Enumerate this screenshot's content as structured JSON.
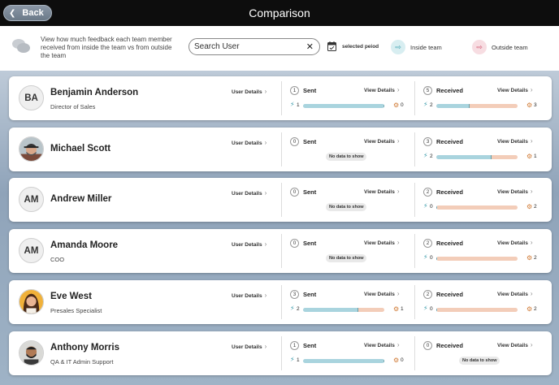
{
  "header": {
    "back_label": "Back",
    "title": "Comparison"
  },
  "toolbar": {
    "description": "View how much feedback each team member received from inside the team vs from outside the team",
    "search_placeholder": "Search User",
    "clear_symbol": "✕",
    "period_label": "selected peiod",
    "inside_label": "Inside team",
    "outside_label": "Outside team"
  },
  "labels": {
    "user_details": "User Details",
    "view_details": "View Details",
    "sent": "Sent",
    "received": "Received",
    "no_data": "No data to show"
  },
  "colors": {
    "inside": "#a9d4de",
    "outside": "#f3cdb9",
    "header_bg": "#0d0d0d"
  },
  "people": [
    {
      "name": "Benjamin Anderson",
      "role": "Director of Sales",
      "initials": "BA",
      "avatar": "initials",
      "sent": {
        "count": "1",
        "inside": "1",
        "outside": "0",
        "inside_fraction": 1.0
      },
      "received": {
        "count": "5",
        "inside": "2",
        "outside": "3",
        "inside_fraction": 0.4
      }
    },
    {
      "name": "Michael Scott",
      "role": "",
      "initials": "",
      "avatar": "photo-cap",
      "sent": {
        "count": "0",
        "empty": true
      },
      "received": {
        "count": "3",
        "inside": "2",
        "outside": "1",
        "inside_fraction": 0.67
      }
    },
    {
      "name": "Andrew Miller",
      "role": "",
      "initials": "AM",
      "avatar": "initials",
      "sent": {
        "count": "0",
        "empty": true
      },
      "received": {
        "count": "2",
        "inside": "0",
        "outside": "2",
        "inside_fraction": 0.0
      }
    },
    {
      "name": "Amanda Moore",
      "role": "COO",
      "initials": "AM",
      "avatar": "initials",
      "sent": {
        "count": "0",
        "empty": true
      },
      "received": {
        "count": "2",
        "inside": "0",
        "outside": "2",
        "inside_fraction": 0.0
      }
    },
    {
      "name": "Eve West",
      "role": "Presales Specialist",
      "initials": "",
      "avatar": "photo-woman",
      "sent": {
        "count": "3",
        "inside": "2",
        "outside": "1",
        "inside_fraction": 0.67
      },
      "received": {
        "count": "2",
        "inside": "0",
        "outside": "2",
        "inside_fraction": 0.0
      }
    },
    {
      "name": "Anthony Morris",
      "role": "QA & IT Admin Support",
      "initials": "",
      "avatar": "photo-man",
      "sent": {
        "count": "1",
        "inside": "1",
        "outside": "0",
        "inside_fraction": 1.0
      },
      "received": {
        "count": "0",
        "empty": true
      }
    }
  ]
}
